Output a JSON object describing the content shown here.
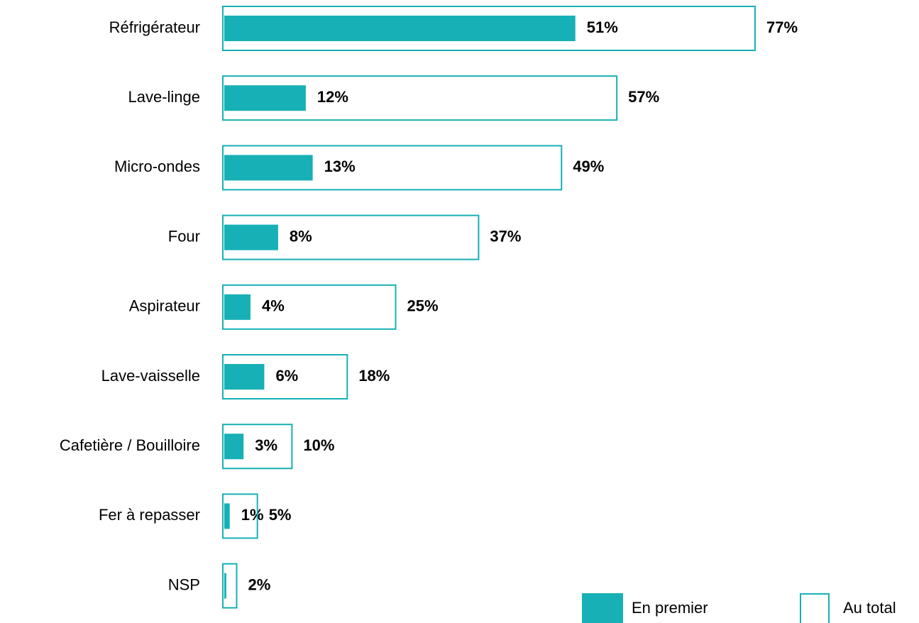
{
  "chart_data": {
    "type": "bar-overlay",
    "categories": [
      "Réfrigérateur",
      "Lave-linge",
      "Micro-ondes",
      "Four",
      "Aspirateur",
      "Lave-vaisselle",
      "Cafetière / Bouilloire",
      "Fer à repasser",
      "NSP"
    ],
    "series": [
      {
        "name": "En premier",
        "color": "#16b0b6",
        "style": "filled",
        "values": [
          51,
          12,
          13,
          8,
          4,
          6,
          3,
          1,
          0.5
        ],
        "value_labels": [
          "51%",
          "12%",
          "13%",
          "8%",
          "4%",
          "6%",
          "3%",
          "1%",
          null
        ]
      },
      {
        "name": "Au total",
        "color": "#16b0b6",
        "style": "outline",
        "values": [
          77,
          57,
          49,
          37,
          25,
          18,
          10,
          5,
          2
        ],
        "value_labels": [
          "77%",
          "57%",
          "49%",
          "37%",
          "25%",
          "18%",
          "10%",
          "5%",
          "2%"
        ]
      }
    ],
    "legend": "bottom-right"
  }
}
